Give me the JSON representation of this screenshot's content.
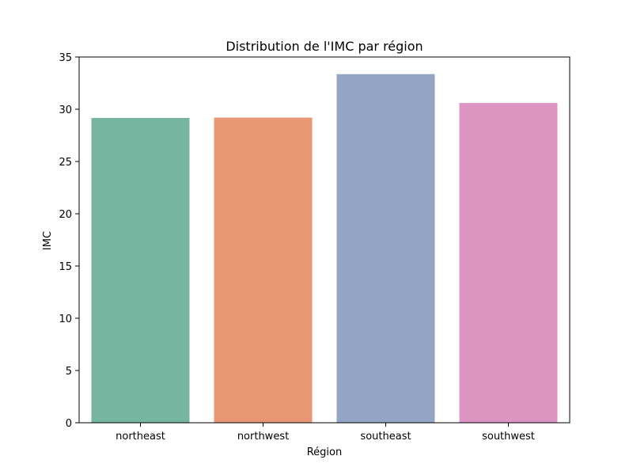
{
  "chart_data": {
    "type": "bar",
    "title": "Distribution de l'IMC par région",
    "xlabel": "Région",
    "ylabel": "IMC",
    "categories": [
      "northeast",
      "northwest",
      "southeast",
      "southwest"
    ],
    "values": [
      29.17,
      29.2,
      33.36,
      30.6
    ],
    "colors": [
      "#76b6a0",
      "#e89674",
      "#93a4c4",
      "#db95c0"
    ],
    "ylim": [
      0,
      35
    ],
    "yticks": [
      0,
      5,
      10,
      15,
      20,
      25,
      30,
      35
    ],
    "ytick_labels": [
      "0",
      "5",
      "10",
      "15",
      "20",
      "25",
      "30",
      "35"
    ],
    "grid": false,
    "legend": "none"
  }
}
